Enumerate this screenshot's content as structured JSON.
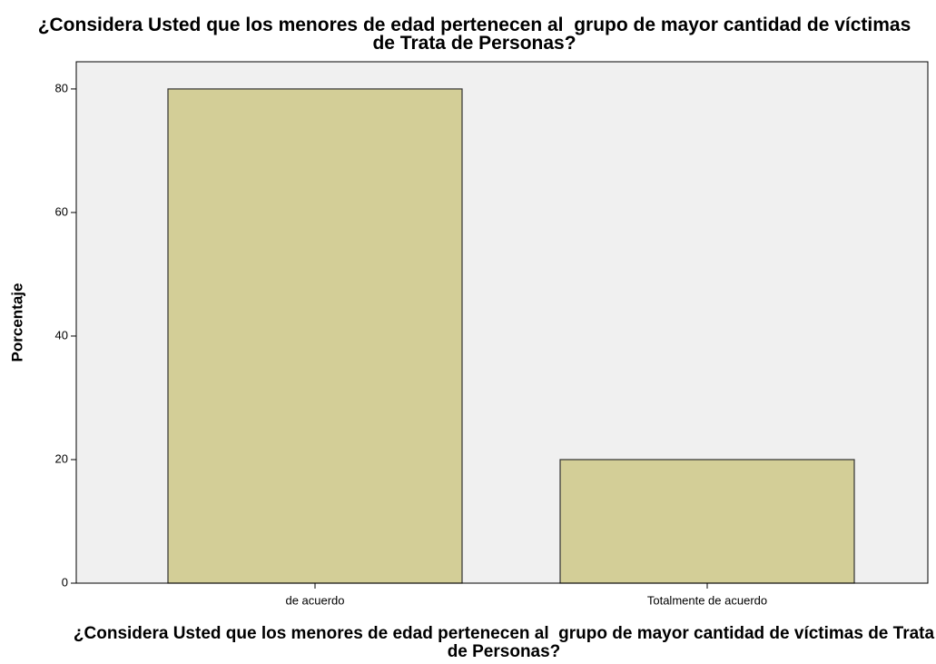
{
  "chart_data": {
    "type": "bar",
    "title": "¿Considera Usted que los menores de edad pertenecen al  grupo de mayor cantidad de víctimas de Trata de Personas?",
    "x_label": "¿Considera Usted que los menores de edad pertenecen al  grupo de mayor cantidad de víctimas de Trata de Personas?",
    "y_label": "Porcentaje",
    "categories": [
      "de acuerdo",
      "Totalmente de acuerdo"
    ],
    "values": [
      80,
      20
    ],
    "color": "#d3ce97",
    "ylim": [
      0,
      84.4
    ],
    "yticks": [
      0,
      20,
      40,
      60,
      80
    ],
    "grid": false
  }
}
